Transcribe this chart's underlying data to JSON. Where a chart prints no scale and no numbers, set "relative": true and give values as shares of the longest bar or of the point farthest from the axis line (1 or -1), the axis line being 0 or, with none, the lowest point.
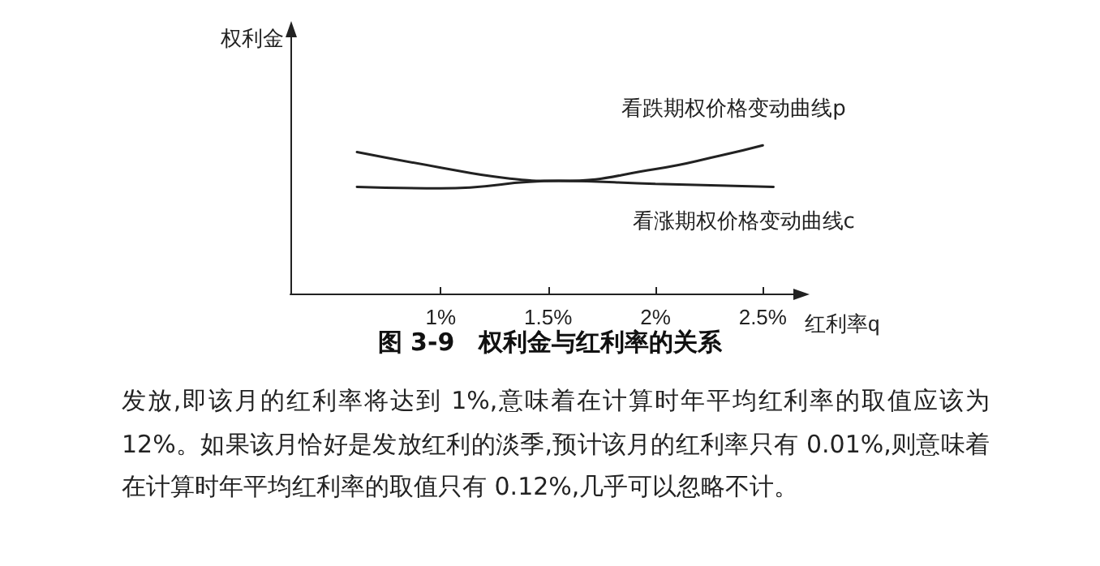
{
  "chart_data": {
    "type": "line",
    "title": "图 3-9　权利金与红利率的关系",
    "xlabel": "红利率q",
    "ylabel": "权利金",
    "relative": true,
    "xlim": [
      0.3,
      2.65
    ],
    "xticks": [
      {
        "value": 1,
        "label": "1%"
      },
      {
        "value": 1.5,
        "label": "1.5%"
      },
      {
        "value": 2,
        "label": "2%"
      },
      {
        "value": 2.5,
        "label": "2.5%"
      }
    ],
    "series": [
      {
        "name": "看跌期权价格变动曲线p",
        "color": "#222222",
        "x": [
          0.61,
          1.0,
          1.3,
          1.55,
          2.0,
          2.3,
          2.5
        ],
        "values": [
          0.955,
          0.85,
          0.78,
          0.76,
          0.84,
          0.93,
          1.0
        ]
      },
      {
        "name": "看涨期权价格变动曲线c",
        "color": "#222222",
        "x": [
          0.61,
          1.0,
          1.55,
          2.0,
          2.55
        ],
        "values": [
          0.72,
          0.71,
          0.76,
          0.74,
          0.72
        ]
      }
    ],
    "marker": "none",
    "line_style": "solid",
    "grid": false,
    "legend": false,
    "annotations": [
      "发放,即该月的红利率将达到 1%,意味着在计算时年平均红利率的取值应该为 12%。如果该月恰好是发放红利的淡季,预计该月的红利率只有 0.01%,则意味着在计算时年平均红利率的取值只有 0.12%,几乎可以忽略不计。"
    ]
  }
}
